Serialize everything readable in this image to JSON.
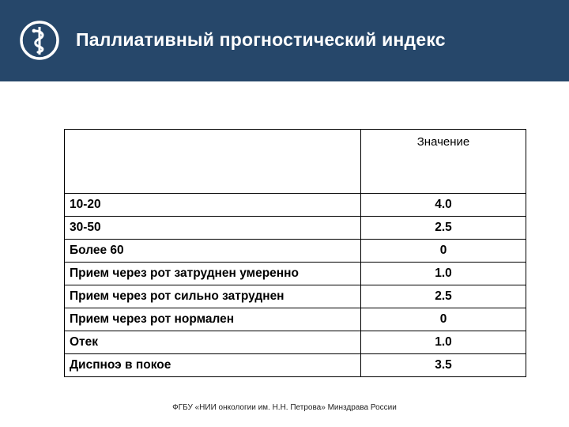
{
  "header": {
    "title": "Паллиативный прогностический индекс",
    "logo_icon": "caduceus-icon",
    "background_color": "#26476a"
  },
  "table": {
    "header": {
      "label": "",
      "value": "Значение"
    },
    "rows": [
      {
        "label": "10-20",
        "value": "4.0"
      },
      {
        "label": "30-50",
        "value": "2.5"
      },
      {
        "label": "Более 60",
        "value": "0"
      },
      {
        "label": "Прием через рот затруднен умеренно",
        "value": "1.0"
      },
      {
        "label": "Прием через рот сильно затруднен",
        "value": "2.5"
      },
      {
        "label": "Прием через рот нормален",
        "value": "0"
      },
      {
        "label": "Отек",
        "value": "1.0"
      },
      {
        "label": "Диспноэ в покое",
        "value": "3.5"
      }
    ]
  },
  "footer": {
    "text": "ФГБУ «НИИ онкологии им. Н.Н. Петрова» Минздрава России"
  }
}
